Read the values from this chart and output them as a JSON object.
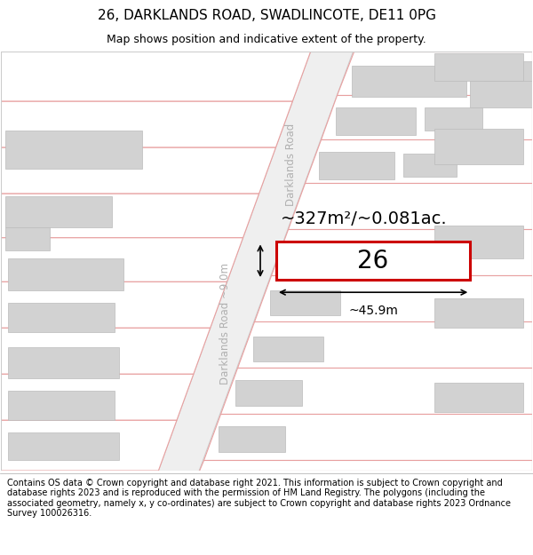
{
  "title": "26, DARKLANDS ROAD, SWADLINCOTE, DE11 0PG",
  "subtitle": "Map shows position and indicative extent of the property.",
  "footer": "Contains OS data © Crown copyright and database right 2021. This information is subject to Crown copyright and database rights 2023 and is reproduced with the permission of HM Land Registry. The polygons (including the associated geometry, namely x, y co-ordinates) are subject to Crown copyright and database rights 2023 Ordnance Survey 100026316.",
  "area_label": "~327m²/~0.081ac.",
  "width_label": "~45.9m",
  "height_label": "~9.0m",
  "number_label": "26",
  "road_label_upper": "Darklands Road",
  "road_label_lower": "Darklands Road ~9.0m",
  "bg_color": "#ffffff",
  "plot_line_color": "#e8a0a0",
  "highlight_color": "#cc0000",
  "building_fill": "#d2d2d2",
  "building_edge": "#bbbbbb",
  "road_fill": "#e8e8e8",
  "title_fontsize": 11,
  "subtitle_fontsize": 9,
  "footer_fontsize": 7
}
